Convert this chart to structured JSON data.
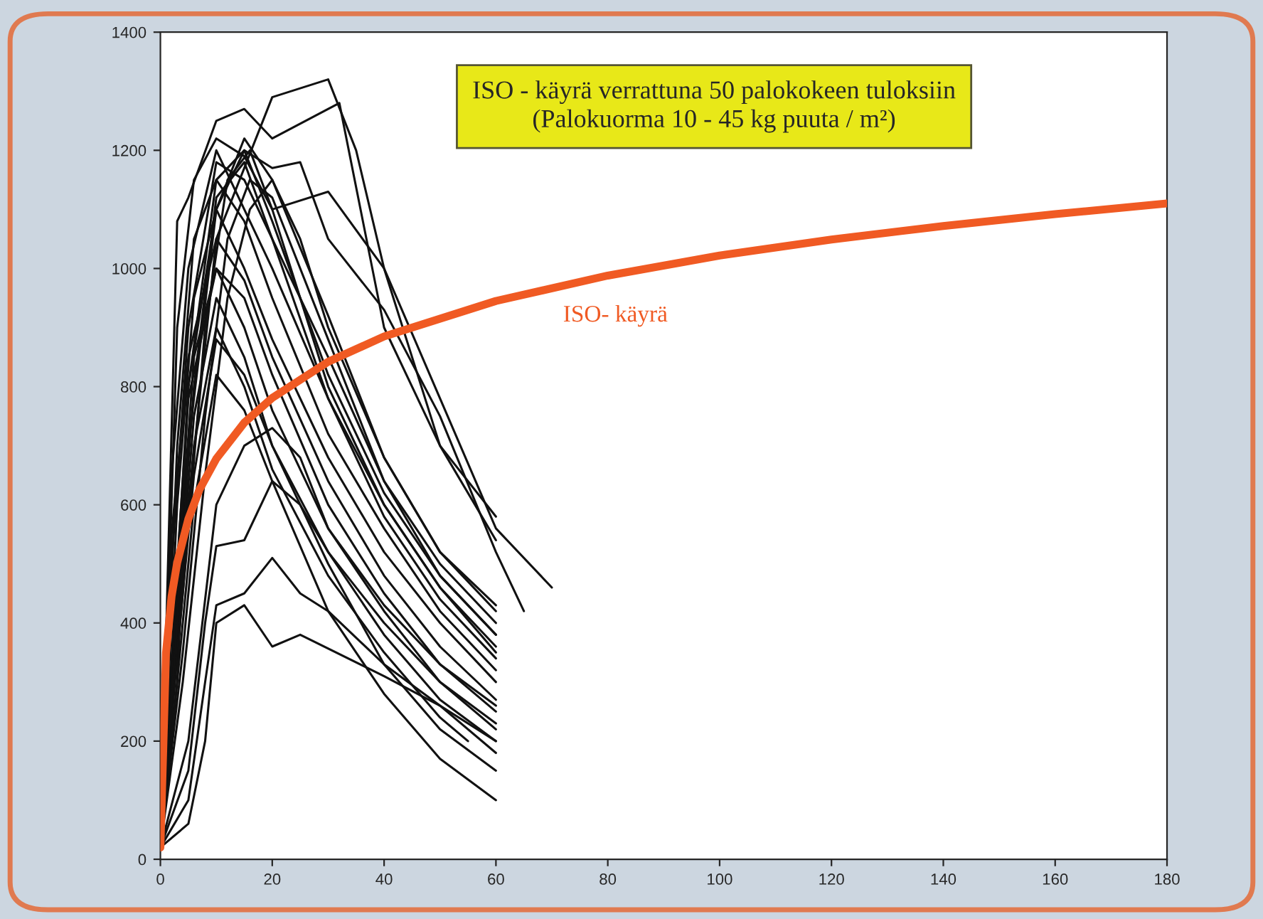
{
  "chart_data": {
    "type": "line",
    "title": "ISO - käyrä verrattuna 50 palokokeen tuloksiin\n(Palokuorma 10 - 45 kg puuta / m²)",
    "xlim": [
      0,
      180
    ],
    "xticks": [
      0,
      20,
      40,
      60,
      80,
      100,
      120,
      140,
      160,
      180
    ],
    "ylim": [
      0,
      1400
    ],
    "yticks": [
      0,
      200,
      400,
      600,
      800,
      1000,
      1200,
      1400
    ],
    "grid": false,
    "legend": false,
    "marker": "none",
    "line_style": "solid",
    "series": [
      {
        "name": "ISO- käyrä",
        "color": "#f05a23",
        "x": [
          0,
          1,
          2,
          3,
          5,
          7,
          10,
          15,
          20,
          30,
          40,
          60,
          80,
          100,
          120,
          140,
          160,
          180
        ],
        "values": [
          20,
          349,
          445,
          502,
          576,
          626,
          678,
          739,
          781,
          842,
          885,
          945,
          988,
          1022,
          1049,
          1072,
          1092,
          1110
        ]
      },
      {
        "color": "#111111",
        "x": [
          0,
          5,
          10,
          20,
          30,
          35,
          40,
          50,
          60
        ],
        "values": [
          20,
          600,
          1050,
          1290,
          1320,
          1200,
          1000,
          700,
          540
        ]
      },
      {
        "color": "#111111",
        "x": [
          0,
          3,
          5,
          10,
          15,
          20,
          32,
          40,
          50,
          60
        ],
        "values": [
          20,
          1080,
          1120,
          1250,
          1270,
          1220,
          1280,
          900,
          700,
          580
        ]
      },
      {
        "color": "#111111",
        "x": [
          0,
          3,
          6,
          10,
          15,
          20,
          30,
          40,
          50,
          60,
          70
        ],
        "values": [
          20,
          900,
          1150,
          1220,
          1190,
          1100,
          1130,
          1000,
          780,
          560,
          460
        ]
      },
      {
        "color": "#111111",
        "x": [
          0,
          5,
          10,
          15,
          20,
          25,
          30,
          40,
          50,
          60,
          65
        ],
        "values": [
          20,
          800,
          1100,
          1200,
          1170,
          1180,
          1050,
          930,
          750,
          520,
          420
        ]
      },
      {
        "color": "#111111",
        "x": [
          0,
          2,
          5,
          10,
          15,
          20,
          30,
          40,
          50,
          60
        ],
        "values": [
          20,
          500,
          900,
          1180,
          1150,
          1050,
          850,
          640,
          480,
          380
        ]
      },
      {
        "color": "#111111",
        "x": [
          0,
          2,
          5,
          10,
          15,
          20,
          30,
          40,
          50,
          60
        ],
        "values": [
          20,
          650,
          1000,
          1200,
          1100,
          1000,
          780,
          600,
          460,
          360
        ]
      },
      {
        "color": "#111111",
        "x": [
          0,
          3,
          6,
          10,
          15,
          20,
          30,
          40,
          50,
          60
        ],
        "values": [
          20,
          700,
          1050,
          1150,
          1080,
          950,
          720,
          560,
          420,
          320
        ]
      },
      {
        "color": "#111111",
        "x": [
          0,
          3,
          6,
          10,
          15,
          20,
          30,
          40,
          50,
          60
        ],
        "values": [
          20,
          600,
          950,
          1100,
          1000,
          880,
          680,
          520,
          400,
          300
        ]
      },
      {
        "color": "#111111",
        "x": [
          0,
          2,
          5,
          10,
          15,
          20,
          30,
          40,
          50,
          60
        ],
        "values": [
          20,
          550,
          850,
          1050,
          980,
          850,
          640,
          480,
          360,
          270
        ]
      },
      {
        "color": "#111111",
        "x": [
          0,
          3,
          5,
          10,
          15,
          20,
          30,
          40,
          50,
          60
        ],
        "values": [
          20,
          500,
          780,
          1000,
          950,
          820,
          600,
          450,
          330,
          250
        ]
      },
      {
        "color": "#111111",
        "x": [
          0,
          3,
          6,
          10,
          15,
          20,
          30,
          40,
          50,
          60
        ],
        "values": [
          20,
          420,
          800,
          1120,
          1180,
          1050,
          780,
          580,
          440,
          340
        ]
      },
      {
        "color": "#111111",
        "x": [
          0,
          4,
          8,
          12,
          16,
          20,
          30,
          40,
          50,
          60
        ],
        "values": [
          20,
          450,
          900,
          1150,
          1200,
          1100,
          800,
          600,
          460,
          350
        ]
      },
      {
        "color": "#111111",
        "x": [
          0,
          4,
          8,
          12,
          16,
          20,
          30,
          40,
          50,
          60
        ],
        "values": [
          20,
          350,
          750,
          1050,
          1150,
          1120,
          880,
          640,
          500,
          400
        ]
      },
      {
        "color": "#111111",
        "x": [
          0,
          4,
          8,
          12,
          16,
          20,
          25,
          30,
          40,
          50,
          60
        ],
        "values": [
          20,
          300,
          650,
          950,
          1100,
          1150,
          1050,
          900,
          680,
          520,
          420
        ]
      },
      {
        "color": "#111111",
        "x": [
          0,
          3,
          6,
          10,
          15,
          20,
          30,
          40,
          50,
          60
        ],
        "values": [
          20,
          450,
          850,
          1000,
          900,
          760,
          560,
          420,
          300,
          220
        ]
      },
      {
        "color": "#111111",
        "x": [
          0,
          3,
          6,
          10,
          15,
          20,
          30,
          40,
          50,
          60
        ],
        "values": [
          20,
          400,
          750,
          950,
          850,
          700,
          520,
          380,
          270,
          200
        ]
      },
      {
        "color": "#111111",
        "x": [
          0,
          3,
          6,
          10,
          15,
          20,
          30,
          40,
          50,
          55
        ],
        "values": [
          20,
          380,
          700,
          900,
          800,
          660,
          480,
          350,
          240,
          200
        ]
      },
      {
        "color": "#111111",
        "x": [
          0,
          3,
          6,
          10,
          15,
          20,
          30,
          40,
          50,
          60
        ],
        "values": [
          20,
          350,
          650,
          880,
          820,
          700,
          500,
          330,
          220,
          150
        ]
      },
      {
        "color": "#111111",
        "x": [
          0,
          3,
          6,
          10,
          15,
          20,
          30,
          40,
          50,
          60
        ],
        "values": [
          20,
          300,
          600,
          820,
          760,
          640,
          420,
          280,
          170,
          100
        ]
      },
      {
        "color": "#111111",
        "x": [
          0,
          5,
          10,
          15,
          20,
          25,
          30,
          40,
          50,
          60
        ],
        "values": [
          20,
          200,
          600,
          700,
          730,
          680,
          560,
          430,
          330,
          260
        ]
      },
      {
        "color": "#111111",
        "x": [
          0,
          5,
          8,
          10,
          15,
          20,
          25,
          30,
          40,
          50,
          60
        ],
        "values": [
          20,
          150,
          400,
          530,
          540,
          640,
          600,
          520,
          400,
          300,
          230
        ]
      },
      {
        "color": "#111111",
        "x": [
          0,
          5,
          8,
          10,
          15,
          20,
          25,
          30,
          40,
          50,
          60
        ],
        "values": [
          20,
          100,
          300,
          430,
          450,
          510,
          450,
          420,
          330,
          260,
          180
        ]
      },
      {
        "color": "#111111",
        "x": [
          0,
          5,
          8,
          10,
          15,
          20,
          25,
          40,
          50,
          60
        ],
        "values": [
          20,
          60,
          200,
          400,
          430,
          360,
          380,
          310,
          260,
          200
        ]
      },
      {
        "color": "#111111",
        "x": [
          0,
          3,
          5,
          10,
          15,
          20,
          30,
          40,
          50,
          60
        ],
        "values": [
          20,
          300,
          700,
          1100,
          1220,
          1150,
          920,
          680,
          520,
          430
        ]
      },
      {
        "color": "#111111",
        "x": [
          0,
          3,
          5,
          10,
          15,
          20,
          30,
          40,
          50,
          60
        ],
        "values": [
          20,
          400,
          800,
          1150,
          1200,
          1080,
          820,
          620,
          480,
          380
        ]
      }
    ]
  }
}
